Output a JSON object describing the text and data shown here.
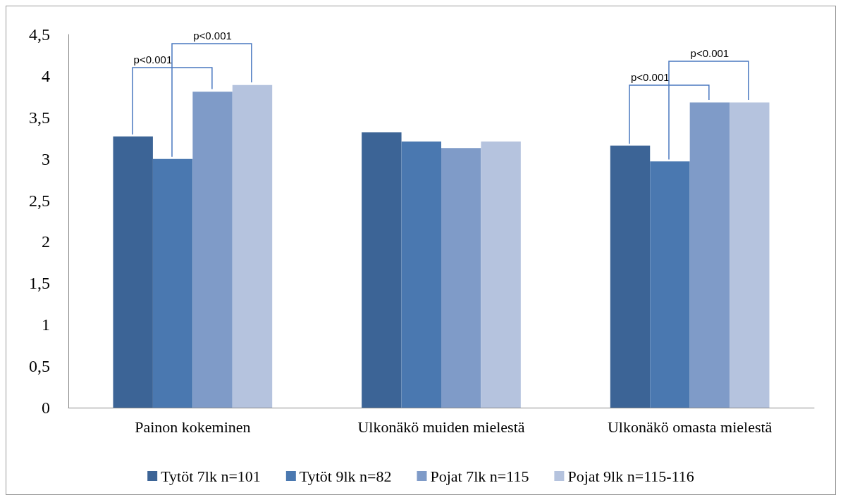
{
  "chart_data": {
    "type": "bar",
    "categories": [
      "Painon kokeminen",
      "Ulkonäkö muiden mielestä",
      "Ulkonäkö omasta mielestä"
    ],
    "series": [
      {
        "name": "Tytöt 7lk n=101",
        "color": "#3c6496",
        "values": [
          3.27,
          3.32,
          3.16
        ]
      },
      {
        "name": "Tytöt 9lk n=82",
        "color": "#4a78b0",
        "values": [
          3.0,
          3.21,
          2.97
        ]
      },
      {
        "name": "Pojat 7lk n=115",
        "color": "#7f9bc8",
        "values": [
          3.81,
          3.13,
          3.68
        ]
      },
      {
        "name": "Pojat 9lk n=115-116",
        "color": "#b5c3de",
        "values": [
          3.89,
          3.21,
          3.68
        ]
      }
    ],
    "annotations": [
      "p<0.001",
      "p<0.001",
      "p<0.001",
      "p<0.001"
    ],
    "ylim": [
      0,
      4.5
    ],
    "yticks": [
      0,
      {
        "value": 0.5,
        "label": "0,5"
      },
      1,
      {
        "value": 1.5,
        "label": "1,5"
      },
      2,
      {
        "value": 2.5,
        "label": "2,5"
      },
      3,
      {
        "value": 3.5,
        "label": "3,5"
      },
      4,
      {
        "value": 4.5,
        "label": "4,5"
      }
    ],
    "grid": false,
    "legend": "bottom"
  }
}
